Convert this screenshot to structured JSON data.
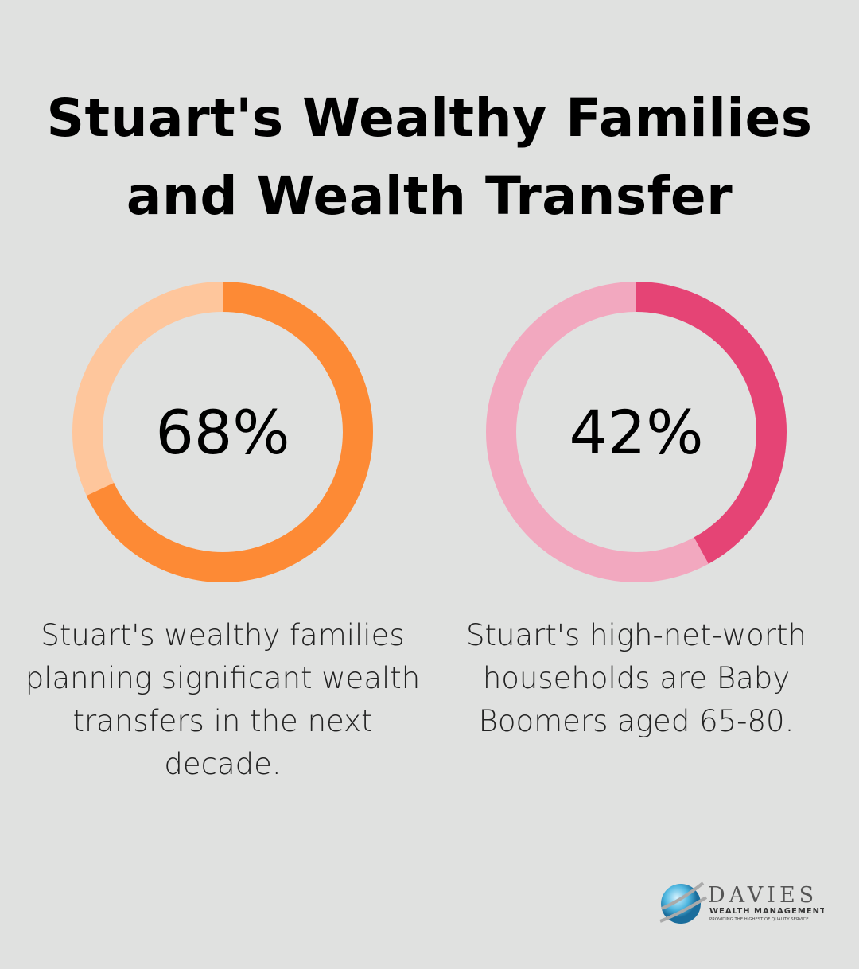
{
  "title": "Stuart's Wealthy Families and Wealth Transfer",
  "chart_data": [
    {
      "type": "pie",
      "variant": "donut",
      "value": 68,
      "label": "68%",
      "description": "Stuart's wealthy families planning significant wealth transfers in the next decade.",
      "colors": {
        "filled": "#fd8a35",
        "remaining": "#fec69c"
      }
    },
    {
      "type": "pie",
      "variant": "donut",
      "value": 42,
      "label": "42%",
      "description": "Stuart's high-net-worth households are Baby Boomers aged 65-80.",
      "colors": {
        "filled": "#e54475",
        "remaining": "#f2a8bf"
      }
    }
  ],
  "logo": {
    "name": "DAVIES",
    "sub": "WEALTH MANAGEMENT",
    "tagline": "PROVIDING THE HIGHEST OF QUALITY SERVICE."
  }
}
